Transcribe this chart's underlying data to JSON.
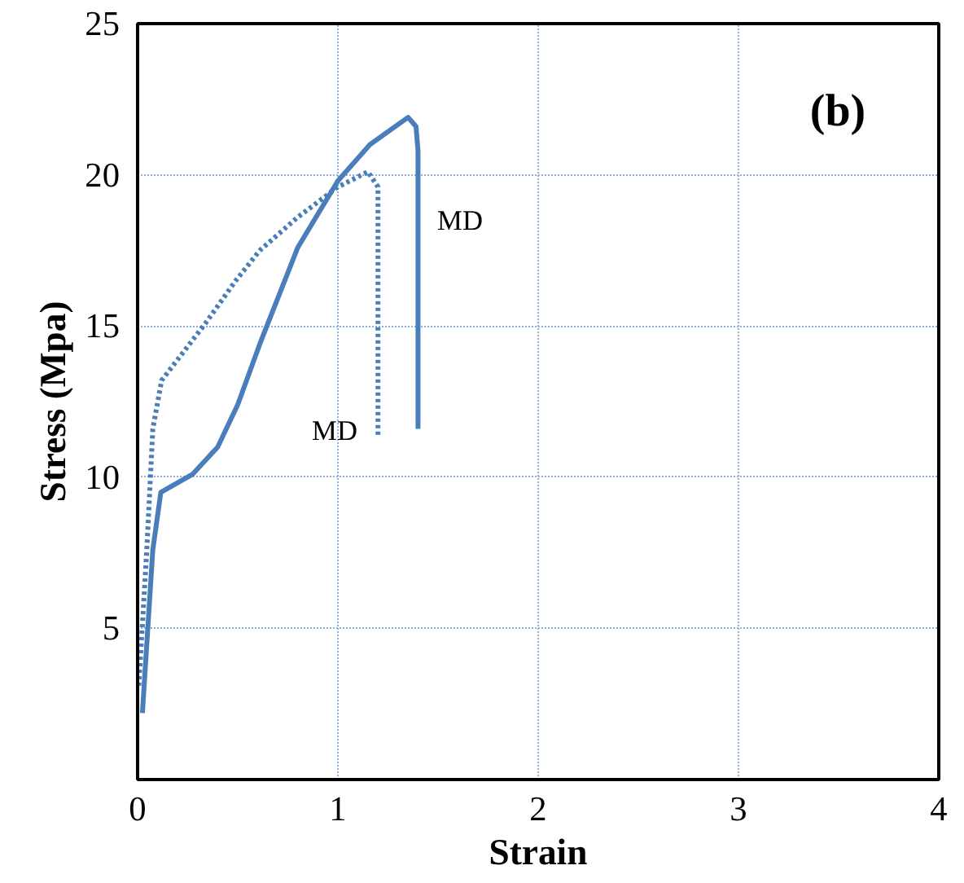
{
  "chart_data": {
    "type": "line",
    "xlabel": "Strain",
    "ylabel": "Stress (Mpa)",
    "xlim": [
      0,
      4
    ],
    "ylim": [
      0,
      25
    ],
    "xticks": [
      0,
      1,
      2,
      3,
      4
    ],
    "yticks": [
      5,
      10,
      15,
      20,
      25
    ],
    "grid": true,
    "marker": "none",
    "series": [
      {
        "color": "#4a7ebb",
        "line_style": "solid",
        "x": [
          0.024,
          0.076,
          0.116,
          0.275,
          0.4,
          0.5,
          0.61,
          0.8,
          1.0,
          1.16,
          1.35,
          1.39,
          1.4,
          1.4
        ],
        "values": [
          2.2,
          7.6,
          9.5,
          10.1,
          11.0,
          12.4,
          14.4,
          17.6,
          19.8,
          21.0,
          21.9,
          21.6,
          20.8,
          11.6
        ]
      },
      {
        "color": "#4a7ebb",
        "line_style": "dotted",
        "x": [
          0.006,
          0.046,
          0.076,
          0.12,
          0.34,
          0.49,
          0.61,
          0.8,
          1.0,
          1.15,
          1.2,
          1.2,
          1.2
        ],
        "values": [
          3.1,
          7.6,
          11.6,
          13.2,
          15.1,
          16.5,
          17.5,
          18.6,
          19.6,
          20.1,
          19.6,
          17.6,
          11.4
        ]
      }
    ],
    "annotations": [
      "(b)",
      "MD",
      "MD"
    ]
  }
}
